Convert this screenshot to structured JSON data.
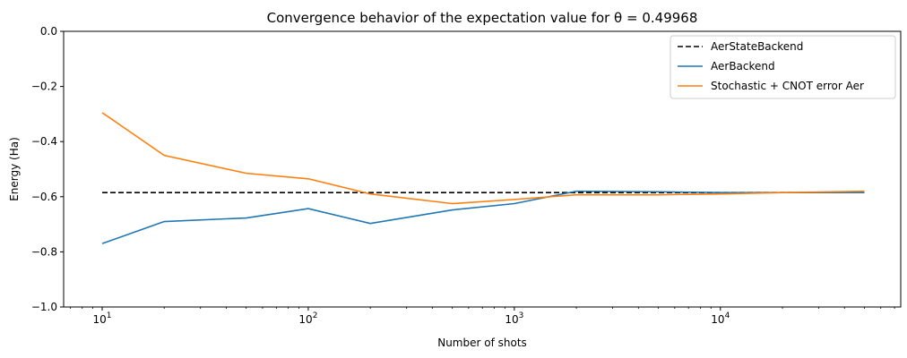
{
  "chart_data": {
    "type": "line",
    "title": "Convergence behavior of the expectation value for θ = 0.49968",
    "xlabel": "Number of shots",
    "ylabel": "Energy (Ha)",
    "xscale": "log",
    "xlim": [
      6.5,
      75000
    ],
    "ylim": [
      -1.0,
      0.0
    ],
    "yticks": [
      "0.0",
      "−0.2",
      "−0.4",
      "−0.6",
      "−0.8",
      "−1.0"
    ],
    "ytick_values": [
      0.0,
      -0.2,
      -0.4,
      -0.6,
      -0.8,
      -1.0
    ],
    "xticks": [
      {
        "base": "10",
        "exp": "1",
        "value": 10
      },
      {
        "base": "10",
        "exp": "2",
        "value": 100
      },
      {
        "base": "10",
        "exp": "3",
        "value": 1000
      },
      {
        "base": "10",
        "exp": "4",
        "value": 10000
      }
    ],
    "legend_position": "top-right",
    "series": [
      {
        "name": "AerStateBackend",
        "color": "#000000",
        "dash": true,
        "x": [
          10,
          50000
        ],
        "y": [
          -0.585,
          -0.585
        ]
      },
      {
        "name": "AerBackend",
        "color": "#1f77b4",
        "dash": false,
        "x": [
          10,
          20,
          50,
          100,
          200,
          500,
          1000,
          2000,
          5000,
          10000,
          20000,
          50000
        ],
        "y": [
          -0.77,
          -0.69,
          -0.677,
          -0.643,
          -0.697,
          -0.648,
          -0.625,
          -0.58,
          -0.582,
          -0.585,
          -0.585,
          -0.585
        ]
      },
      {
        "name": "Stochastic + CNOT error Aer",
        "color": "#ff7f0e",
        "dash": false,
        "x": [
          10,
          20,
          50,
          100,
          200,
          500,
          1000,
          2000,
          5000,
          10000,
          20000,
          50000
        ],
        "y": [
          -0.295,
          -0.45,
          -0.515,
          -0.535,
          -0.59,
          -0.625,
          -0.61,
          -0.593,
          -0.593,
          -0.59,
          -0.585,
          -0.58
        ]
      }
    ]
  }
}
